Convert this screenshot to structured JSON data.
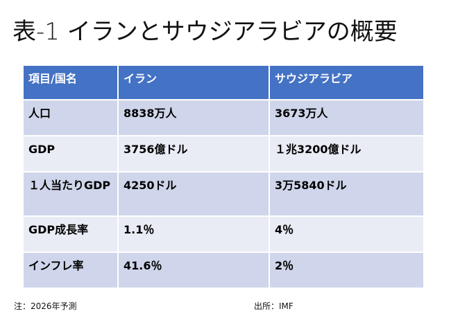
{
  "title": "表-1 イランとサウジアラビアの概要",
  "table": {
    "headers": [
      "項目/国名",
      "イラン",
      "サウジアラビア"
    ],
    "rows": [
      [
        "人口",
        "8838万人",
        "3673万人"
      ],
      [
        "GDP",
        "3756億ドル",
        "１兆3200億ドル"
      ],
      [
        "１人当たりGDP",
        "4250ドル",
        "3万5840ドル"
      ],
      [
        "GDP成長率",
        "1.1％",
        "4％"
      ],
      [
        "インフレ率",
        "41.6％",
        "2％"
      ]
    ]
  },
  "footer": {
    "note": "注：2026年予測",
    "source": "出所：IMF"
  },
  "colors": {
    "header": "#4472C4",
    "row_odd": "#CFD5EA",
    "row_even": "#E9EBF5"
  }
}
